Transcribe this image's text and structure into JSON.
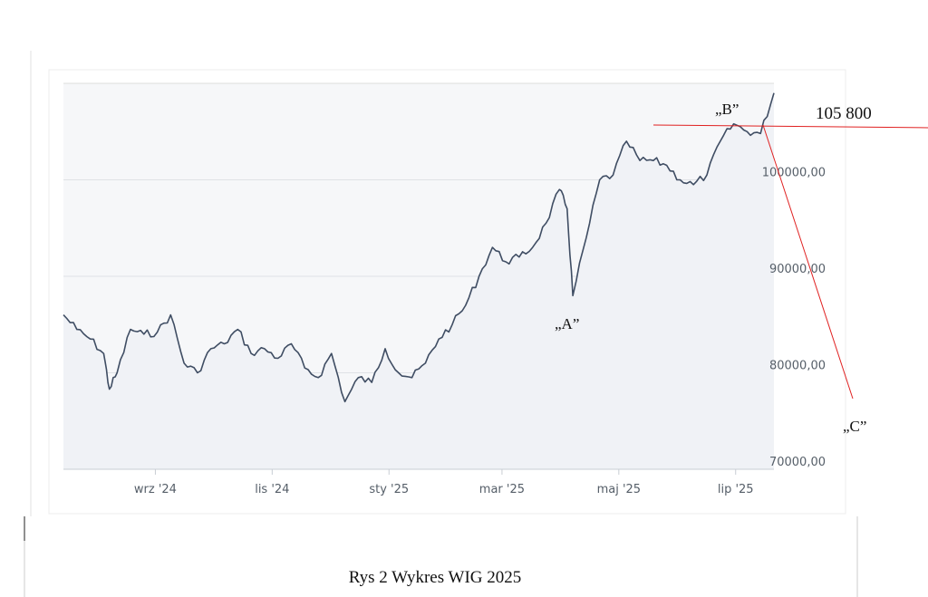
{
  "caption": "Rys 2 Wykres WIG 2025",
  "chart_data": {
    "type": "area",
    "title": "",
    "xlabel": "",
    "ylabel": "",
    "ylim": [
      70000,
      110000
    ],
    "grid": true,
    "x_ticks": [
      "wrz '24",
      "lis '24",
      "sty '25",
      "mar '25",
      "maj '25",
      "lip '25"
    ],
    "y_ticks": [
      "70000,00",
      "80000,00",
      "90000,00",
      "100000,00"
    ],
    "y_tick_values": [
      70000,
      80000,
      90000,
      100000
    ],
    "series": [
      {
        "x": [
          "2024-07-15",
          "2024-07-22",
          "2024-07-29",
          "2024-08-05",
          "2024-08-08",
          "2024-08-12",
          "2024-08-19",
          "2024-08-26",
          "2024-09-02",
          "2024-09-09",
          "2024-09-16",
          "2024-09-23",
          "2024-09-30",
          "2024-10-07",
          "2024-10-14",
          "2024-10-21",
          "2024-10-28",
          "2024-11-04",
          "2024-11-11",
          "2024-11-18",
          "2024-11-25",
          "2024-12-02",
          "2024-12-09",
          "2024-12-16",
          "2024-12-23",
          "2024-12-30",
          "2025-01-06",
          "2025-01-13",
          "2025-01-20",
          "2025-01-27",
          "2025-02-03",
          "2025-02-10",
          "2025-02-17",
          "2025-02-24",
          "2025-03-03",
          "2025-03-10",
          "2025-03-17",
          "2025-03-24",
          "2025-03-31",
          "2025-04-04",
          "2025-04-07",
          "2025-04-14",
          "2025-04-21",
          "2025-04-28",
          "2025-05-05",
          "2025-05-12",
          "2025-05-19",
          "2025-05-26",
          "2025-06-02",
          "2025-06-09",
          "2025-06-16",
          "2025-06-23",
          "2025-06-30",
          "2025-07-07",
          "2025-07-14",
          "2025-07-21"
        ],
        "values": [
          86000,
          84500,
          83500,
          82000,
          78300,
          80000,
          84500,
          84000,
          84200,
          86000,
          81000,
          80000,
          82500,
          83000,
          84500,
          82000,
          82500,
          81500,
          83000,
          80500,
          79500,
          82000,
          77000,
          79500,
          79000,
          82500,
          80000,
          79500,
          81000,
          83500,
          85000,
          87000,
          90000,
          93000,
          91500,
          92000,
          93000,
          95500,
          99000,
          97000,
          88000,
          94000,
          100000,
          100500,
          104000,
          102000,
          102000,
          101500,
          100000,
          99500,
          100500,
          104000,
          105800,
          105000,
          104800,
          109000
        ]
      }
    ],
    "annotations": [
      {
        "label": "„A”",
        "x": "2025-04-07",
        "y": 88000
      },
      {
        "label": "„B”",
        "x": "2025-06-30",
        "y": 105800
      },
      {
        "label": "„C”"
      }
    ],
    "reference_level": {
      "label": "105 800",
      "value": 105800
    }
  }
}
